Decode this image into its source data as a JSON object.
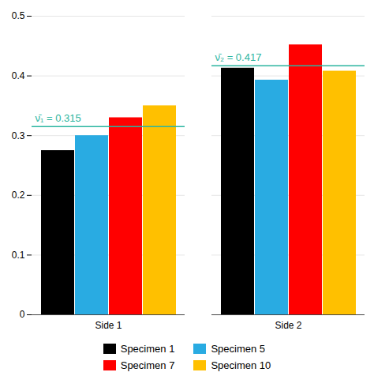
{
  "chart_data": {
    "type": "bar",
    "categories": [
      "Side 1",
      "Side 2"
    ],
    "series": [
      {
        "name": "Specimen 1",
        "color": "#000000",
        "values": [
          0.275,
          0.413
        ]
      },
      {
        "name": "Specimen 5",
        "color": "#29ABE2",
        "values": [
          0.3,
          0.393
        ]
      },
      {
        "name": "Specimen 7",
        "color": "#FF0000",
        "values": [
          0.33,
          0.452
        ]
      },
      {
        "name": "Specimen 10",
        "color": "#FFC000",
        "values": [
          0.35,
          0.408
        ]
      }
    ],
    "mean_lines": [
      {
        "category": "Side 1",
        "value": 0.315,
        "label": "ν̄₁ = 0.315",
        "color": "#2BB5A0"
      },
      {
        "category": "Side 2",
        "value": 0.417,
        "label": "ν̄₂ = 0.417",
        "color": "#2BB5A0"
      }
    ],
    "ylim": [
      0,
      0.5
    ],
    "yticks": [
      0,
      0.1,
      0.2,
      0.3,
      0.4,
      0.5
    ],
    "grid": true,
    "legend": "bottom"
  }
}
